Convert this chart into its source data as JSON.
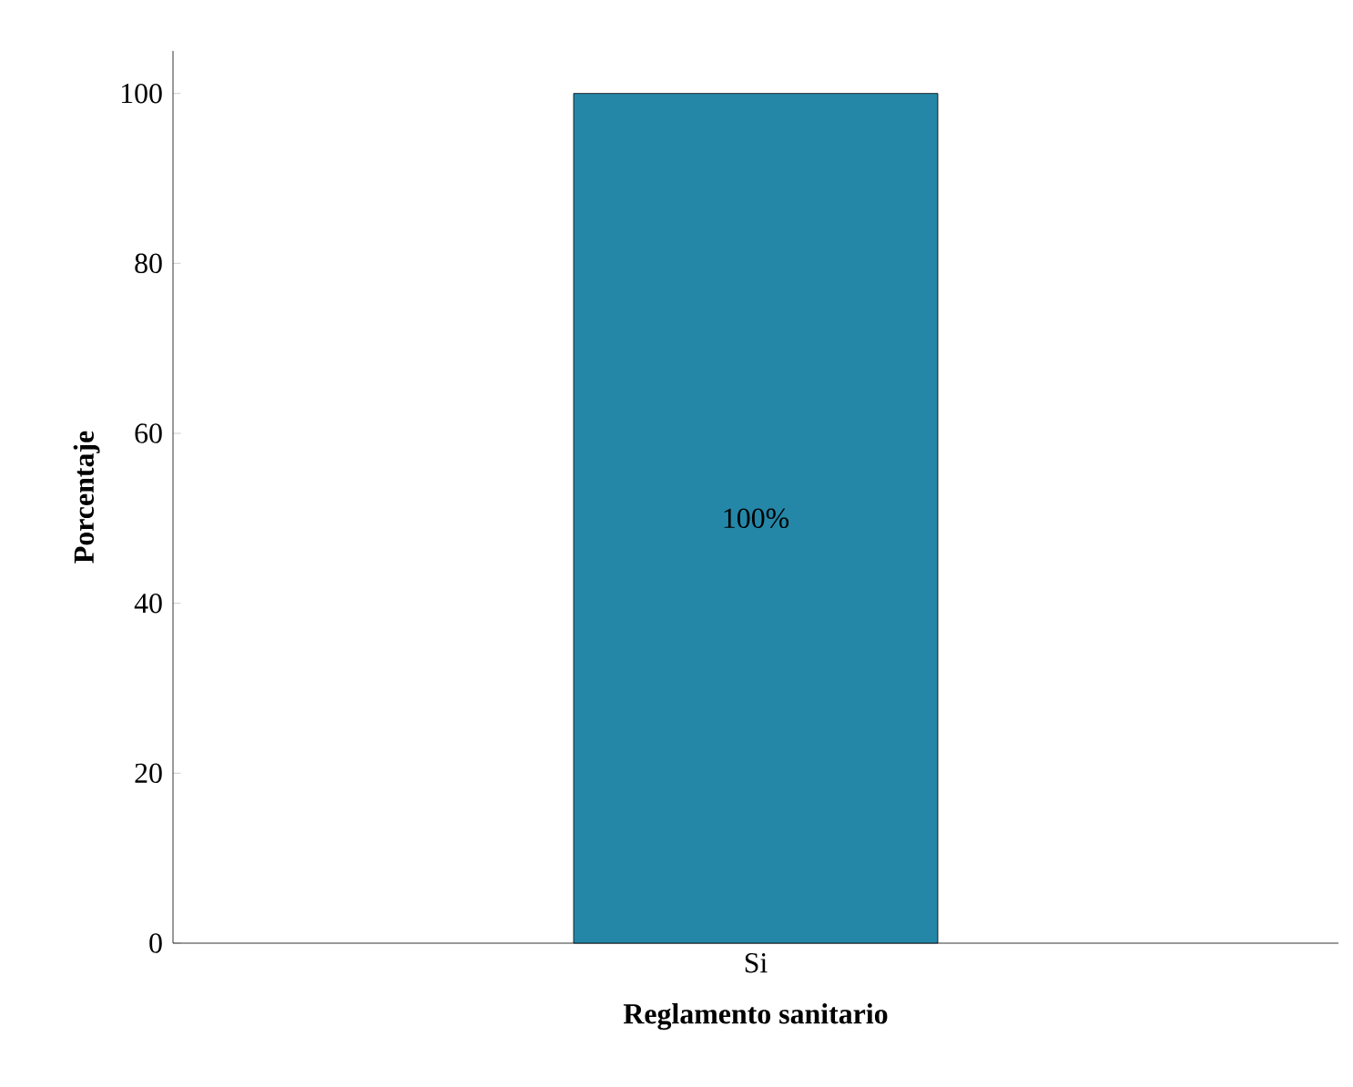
{
  "chart_data": {
    "type": "bar",
    "xlabel": "Reglamento sanitario",
    "ylabel": "Porcentaje",
    "categories": [
      "Si"
    ],
    "values": [
      100
    ],
    "color": "#2487a8",
    "value_labels": [
      "100%"
    ],
    "ylim": [
      0,
      105
    ],
    "yticks": [
      0,
      20,
      40,
      60,
      80,
      100
    ],
    "grid": false
  }
}
